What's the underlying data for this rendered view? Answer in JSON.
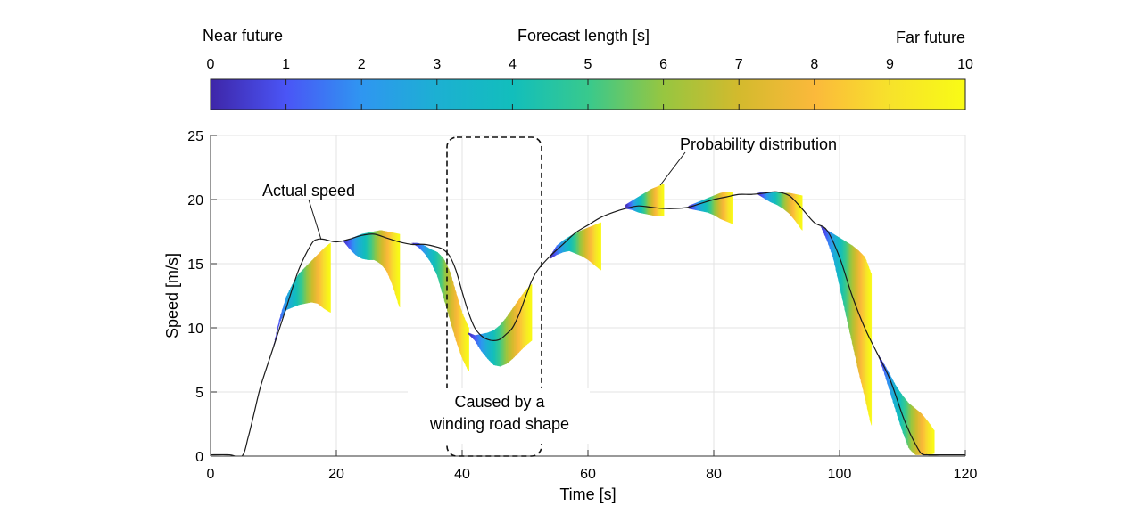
{
  "chart_data": {
    "type": "area",
    "xlabel": "Time [s]",
    "ylabel": "Speed [m/s]",
    "xlim": [
      0,
      120
    ],
    "ylim": [
      0,
      25
    ],
    "xticks": [
      0,
      20,
      40,
      60,
      80,
      100,
      120
    ],
    "yticks": [
      0,
      5,
      10,
      15,
      20,
      25
    ],
    "grid": true,
    "colorbar": {
      "title": "Forecast length [s]",
      "left_label": "Near future",
      "right_label": "Far future",
      "ticks": [
        0,
        1,
        2,
        3,
        4,
        5,
        6,
        7,
        8,
        9,
        10
      ],
      "range": [
        0,
        10
      ],
      "colormap": [
        "#3e26a8",
        "#4a55f6",
        "#2f96f1",
        "#1cb0d2",
        "#12bebc",
        "#38c98d",
        "#97c640",
        "#d3ba2d",
        "#fbb93b",
        "#f7e22b",
        "#f9fb15"
      ]
    },
    "actual_speed": {
      "x": [
        0,
        3,
        5,
        6,
        7,
        8,
        10,
        12,
        14,
        16,
        17,
        18,
        20,
        22,
        24,
        26,
        28,
        30,
        32,
        34,
        36,
        37,
        38,
        39,
        40,
        41,
        42,
        43,
        44,
        45,
        46,
        47,
        48,
        49,
        50,
        51,
        52,
        54,
        56,
        58,
        60,
        62,
        64,
        66,
        68,
        70,
        72,
        74,
        76,
        78,
        80,
        82,
        84,
        86,
        88,
        90,
        92,
        94,
        96,
        98,
        100,
        102,
        104,
        106,
        108,
        110,
        111,
        112,
        113,
        114,
        116,
        118,
        120
      ],
      "y": [
        0.1,
        0.1,
        0,
        1.5,
        3.5,
        5.5,
        8.5,
        11.5,
        14.5,
        16.5,
        16.9,
        16.9,
        16.7,
        16.9,
        17.2,
        17.3,
        17.0,
        16.7,
        16.5,
        16.5,
        16.3,
        16.1,
        15.6,
        14.5,
        12.8,
        11.2,
        10.0,
        9.4,
        9.1,
        9.0,
        9.1,
        9.5,
        10.0,
        11.0,
        12.3,
        13.6,
        14.5,
        15.6,
        16.5,
        17.4,
        18.0,
        18.6,
        19.0,
        19.3,
        19.5,
        19.4,
        19.3,
        19.3,
        19.4,
        19.7,
        20.0,
        20.2,
        20.4,
        20.4,
        20.5,
        20.6,
        20.3,
        19.3,
        18.2,
        17.6,
        15.5,
        12.5,
        10.0,
        8.0,
        6.0,
        3.2,
        2.0,
        1.0,
        0.2,
        0.1,
        0.1,
        0.1,
        0.1
      ]
    },
    "forecasts": [
      {
        "t0": 10,
        "t1": 19,
        "upper": [
          8.6,
          10.8,
          12.4,
          13.4,
          14.2,
          14.7,
          15.2,
          15.7,
          16.2,
          16.6
        ],
        "lower": [
          8.6,
          10.5,
          11.4,
          11.6,
          11.8,
          11.9,
          12.0,
          11.9,
          11.5,
          11.2
        ]
      },
      {
        "t0": 21,
        "t1": 30,
        "upper": [
          16.8,
          16.9,
          17.1,
          17.3,
          17.4,
          17.5,
          17.6,
          17.5,
          17.4,
          17.3
        ],
        "lower": [
          16.8,
          16.2,
          15.7,
          15.4,
          15.3,
          15.3,
          15.0,
          14.4,
          13.2,
          11.6
        ]
      },
      {
        "t0": 32,
        "t1": 41,
        "upper": [
          16.6,
          16.6,
          16.4,
          16.1,
          15.9,
          15.4,
          14.4,
          12.7,
          11.1,
          10.0
        ],
        "lower": [
          16.6,
          16.3,
          15.8,
          15.1,
          14.1,
          12.4,
          10.7,
          9.0,
          7.6,
          6.6
        ]
      },
      {
        "t0": 41,
        "t1": 51,
        "upper": [
          9.6,
          9.4,
          9.5,
          9.6,
          9.8,
          10.2,
          10.8,
          11.5,
          12.2,
          12.9,
          13.4
        ],
        "lower": [
          9.5,
          9.0,
          8.2,
          7.6,
          7.1,
          7.0,
          7.2,
          7.6,
          8.1,
          8.6,
          9.0
        ]
      },
      {
        "t0": 54,
        "t1": 62,
        "upper": [
          15.6,
          16.4,
          16.8,
          17.1,
          17.4,
          17.6,
          17.8,
          18.0,
          18.2
        ],
        "lower": [
          15.4,
          15.7,
          15.9,
          16.0,
          15.8,
          15.6,
          15.3,
          14.9,
          14.5
        ]
      },
      {
        "t0": 66,
        "t1": 72,
        "upper": [
          19.6,
          19.9,
          20.2,
          20.5,
          20.8,
          21.0,
          21.2
        ],
        "lower": [
          19.3,
          19.2,
          19.0,
          18.9,
          18.8,
          18.7,
          18.7
        ]
      },
      {
        "t0": 76,
        "t1": 83,
        "upper": [
          19.5,
          19.7,
          19.9,
          20.1,
          20.3,
          20.5,
          20.6,
          20.6
        ],
        "lower": [
          19.3,
          19.2,
          19.1,
          19.0,
          18.8,
          18.5,
          18.3,
          18.1
        ]
      },
      {
        "t0": 87,
        "t1": 94,
        "upper": [
          20.5,
          20.6,
          20.6,
          20.6,
          20.5,
          20.5,
          20.4,
          20.3
        ],
        "lower": [
          20.4,
          20.1,
          19.8,
          19.6,
          19.3,
          18.9,
          18.3,
          17.6
        ]
      },
      {
        "t0": 97,
        "t1": 105,
        "upper": [
          17.9,
          17.6,
          17.3,
          17.0,
          16.7,
          16.4,
          16.0,
          15.5,
          14.2
        ],
        "lower": [
          17.9,
          16.8,
          15.4,
          13.2,
          11.0,
          8.8,
          6.6,
          4.6,
          2.4
        ]
      },
      {
        "t0": 106,
        "t1": 115,
        "upper": [
          8.0,
          7.2,
          6.3,
          5.4,
          4.7,
          4.1,
          3.7,
          3.3,
          2.7,
          2.0
        ],
        "lower": [
          8.0,
          6.6,
          5.0,
          3.4,
          1.9,
          0.6,
          0.1,
          0.1,
          0.1,
          0.2
        ]
      }
    ],
    "annotations": {
      "actual_speed": "Actual speed",
      "probability_distribution": "Probability distribution",
      "winding_road": [
        "Caused by a",
        "winding road shape"
      ]
    }
  }
}
